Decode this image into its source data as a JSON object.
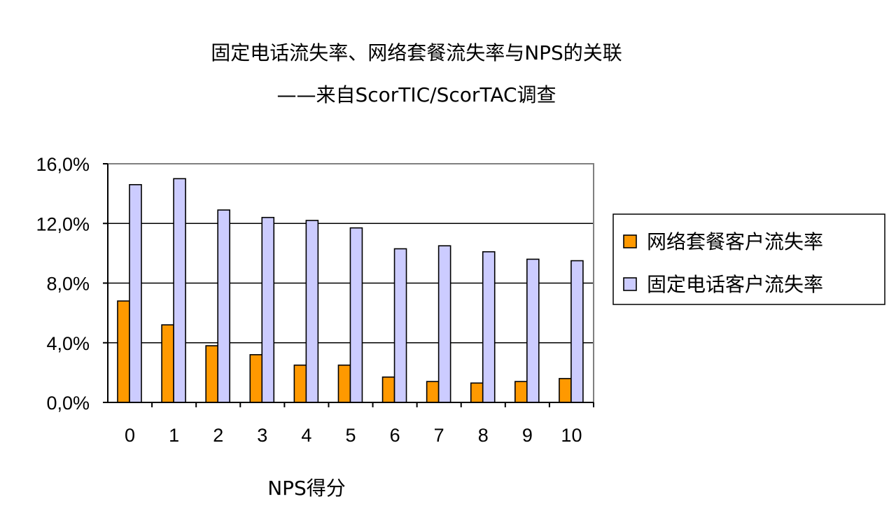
{
  "title": {
    "line1": "固定电话流失率、网络套餐流失率与NPS的关联",
    "line2": "——来自ScorTIC/ScorTAC调查"
  },
  "chart_data": {
    "type": "bar",
    "title": "固定电话流失率、网络套餐流失率与NPS的关联",
    "subtitle": "——来自ScorTIC/ScorTAC调查",
    "xlabel": "NPS得分",
    "ylabel": "",
    "categories": [
      "0",
      "1",
      "2",
      "3",
      "4",
      "5",
      "6",
      "7",
      "8",
      "9",
      "10"
    ],
    "yticks": [
      "0,0%",
      "4,0%",
      "8,0%",
      "12,0%",
      "16,0%"
    ],
    "ylim": [
      0,
      16
    ],
    "grid": true,
    "legend_position": "right",
    "series": [
      {
        "name": "网络套餐客户流失率",
        "color": "#ff9900",
        "values": [
          6.8,
          5.2,
          3.8,
          3.2,
          2.5,
          2.5,
          1.7,
          1.4,
          1.3,
          1.4,
          1.6
        ]
      },
      {
        "name": "固定电话客户流失率",
        "color": "#ccccff",
        "values": [
          14.6,
          15.0,
          12.9,
          12.4,
          12.2,
          11.7,
          10.3,
          10.5,
          10.1,
          9.6,
          9.5
        ]
      }
    ]
  }
}
